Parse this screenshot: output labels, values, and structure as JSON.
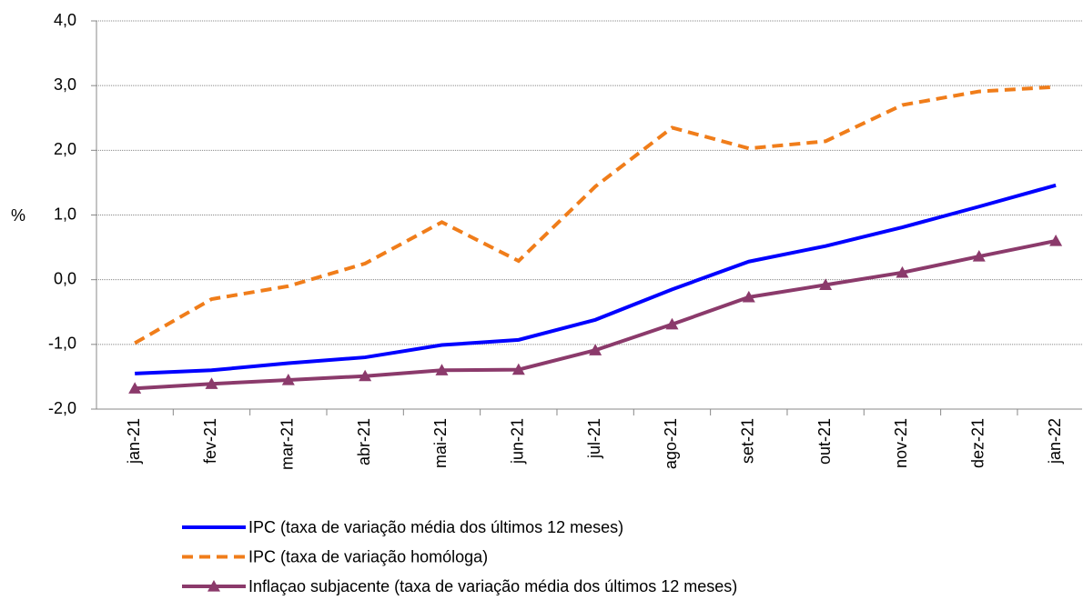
{
  "chart_data": {
    "type": "line",
    "y_label": "%",
    "categories": [
      "jan-21",
      "fev-21",
      "mar-21",
      "abr-21",
      "mai-21",
      "jun-21",
      "jul-21",
      "ago-21",
      "set-21",
      "out-21",
      "nov-21",
      "dez-21",
      "jan-22"
    ],
    "series": [
      {
        "name": "IPC (taxa de variação média dos últimos 12 meses)",
        "color": "#0000ff",
        "dash": "solid",
        "marker": "none",
        "values": [
          -1.45,
          -1.4,
          -1.29,
          -1.2,
          -1.01,
          -0.93,
          -0.62,
          -0.15,
          0.28,
          0.52,
          0.81,
          1.13,
          1.46
        ]
      },
      {
        "name": "IPC (taxa de variação homóloga)",
        "color": "#f07d1a",
        "dash": "dashed",
        "marker": "none",
        "values": [
          -0.98,
          -0.3,
          -0.1,
          0.25,
          0.89,
          0.29,
          1.44,
          2.35,
          2.03,
          2.14,
          2.7,
          2.91,
          2.98
        ]
      },
      {
        "name": "Inflaçao subjacente (taxa de variação média dos últimos 12 meses)",
        "color": "#8b3a6b",
        "dash": "solid",
        "marker": "triangle",
        "values": [
          -1.68,
          -1.61,
          -1.55,
          -1.49,
          -1.4,
          -1.39,
          -1.09,
          -0.69,
          -0.27,
          -0.08,
          0.11,
          0.36,
          0.6
        ]
      }
    ],
    "ylim": [
      -2,
      4
    ],
    "yticks": [
      {
        "value": -2,
        "label": "-2,0"
      },
      {
        "value": -1,
        "label": "-1,0"
      },
      {
        "value": 0,
        "label": "0,0"
      },
      {
        "value": 1,
        "label": "1,0"
      },
      {
        "value": 2,
        "label": "2,0"
      },
      {
        "value": 3,
        "label": "3,0"
      },
      {
        "value": 4,
        "label": "4,0"
      }
    ],
    "grid": true
  }
}
